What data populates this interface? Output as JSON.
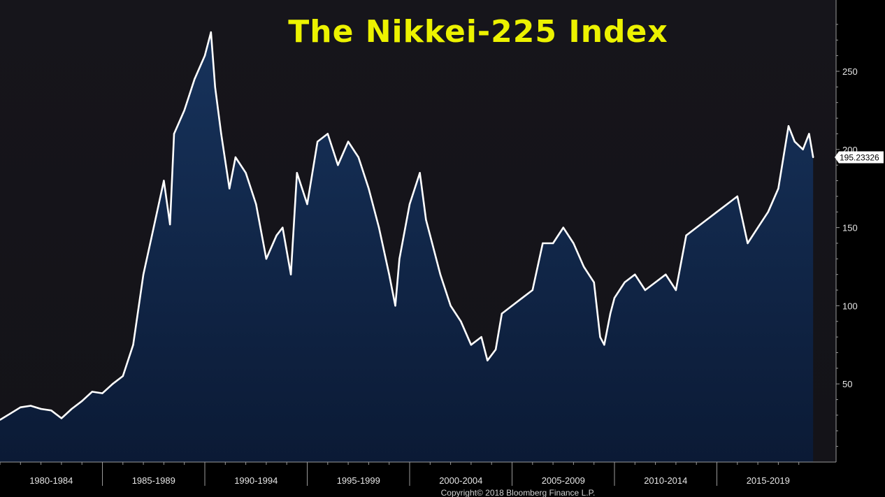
{
  "chart_data": {
    "type": "area",
    "title": "The Nikkei-225 Index",
    "xlabel": "",
    "ylabel": "",
    "ylim": [
      0,
      290
    ],
    "xlim": [
      1979.5,
      2019.5
    ],
    "y_ticks": [
      50,
      100,
      150,
      200,
      250
    ],
    "y_tick_labels": [
      "50",
      "100",
      "150",
      "200",
      "250"
    ],
    "categories": [
      "1980-1984",
      "1985-1989",
      "1990-1994",
      "1995-1999",
      "2000-2004",
      "2005-2009",
      "2010-2014",
      "2015-2019"
    ],
    "category_boundaries": [
      1984.5,
      1989.5,
      1994.5,
      1999.5,
      2004.5,
      2009.5,
      2014.5
    ],
    "last_value_label": "195.23326",
    "grid": false,
    "legend": "none",
    "series": [
      {
        "x": [
          1979.5,
          1980.0,
          1980.5,
          1981.0,
          1981.5,
          1982.0,
          1982.5,
          1983.0,
          1983.5,
          1984.0,
          1984.5,
          1985.0,
          1985.5,
          1986.0,
          1986.5,
          1987.0,
          1987.5,
          1987.8,
          1988.0,
          1988.5,
          1989.0,
          1989.5,
          1989.8,
          1990.0,
          1990.3,
          1990.7,
          1991.0,
          1991.5,
          1992.0,
          1992.5,
          1993.0,
          1993.3,
          1993.7,
          1994.0,
          1994.5,
          1995.0,
          1995.5,
          1996.0,
          1996.5,
          1997.0,
          1997.5,
          1998.0,
          1998.5,
          1998.8,
          1999.0,
          1999.5,
          2000.0,
          2000.3,
          2000.5,
          2001.0,
          2001.5,
          2002.0,
          2002.5,
          2003.0,
          2003.3,
          2003.7,
          2004.0,
          2004.5,
          2005.0,
          2005.5,
          2006.0,
          2006.5,
          2007.0,
          2007.5,
          2008.0,
          2008.5,
          2008.8,
          2009.0,
          2009.3,
          2009.5,
          2010.0,
          2010.5,
          2011.0,
          2011.5,
          2012.0,
          2012.5,
          2013.0,
          2013.5,
          2014.0,
          2014.5,
          2015.0,
          2015.5,
          2016.0,
          2016.5,
          2017.0,
          2017.5,
          2018.0,
          2018.3,
          2018.7,
          2019.0,
          2019.2
        ],
        "values": [
          27,
          31,
          35,
          36,
          34,
          33,
          28,
          34,
          39,
          45,
          44,
          50,
          55,
          75,
          120,
          150,
          180,
          152,
          210,
          225,
          245,
          260,
          275,
          240,
          210,
          175,
          195,
          185,
          165,
          130,
          145,
          150,
          120,
          185,
          165,
          205,
          210,
          190,
          205,
          195,
          175,
          150,
          120,
          100,
          130,
          165,
          185,
          155,
          145,
          120,
          100,
          90,
          75,
          80,
          65,
          72,
          95,
          100,
          105,
          110,
          140,
          140,
          150,
          140,
          125,
          115,
          80,
          75,
          95,
          105,
          115,
          120,
          110,
          115,
          120,
          110,
          145,
          150,
          155,
          160,
          165,
          170,
          140,
          150,
          160,
          175,
          215,
          205,
          200,
          210,
          195
        ]
      }
    ]
  },
  "copyright": "Copyright© 2018 Bloomberg Finance L.P.",
  "colors": {
    "background": "#000000",
    "plot_background_top": "#16151b",
    "plot_background_bottom": "#141318",
    "area_fill_top": "#17335c",
    "area_fill_bottom": "#0b1a35",
    "line": "#ffffff",
    "title": "#ecf200",
    "axis": "#9a9a9a",
    "label_box": "#ffffff"
  }
}
